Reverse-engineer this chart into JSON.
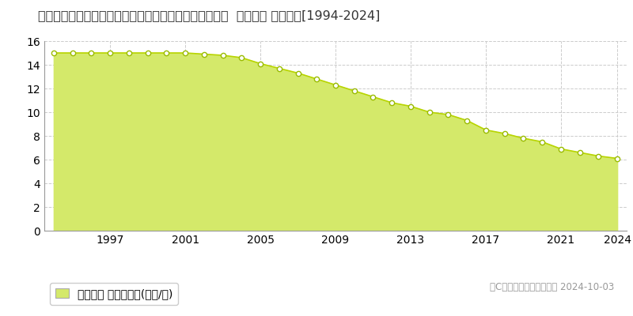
{
  "title": "和歌山県日高郡由良町大字阿戸字木場坪１００１番１８  公示地価 地価推移[1994-2024]",
  "years": [
    1994,
    1995,
    1996,
    1997,
    1998,
    1999,
    2000,
    2001,
    2002,
    2003,
    2004,
    2005,
    2006,
    2007,
    2008,
    2009,
    2010,
    2011,
    2012,
    2013,
    2014,
    2015,
    2016,
    2017,
    2018,
    2019,
    2020,
    2021,
    2022,
    2023,
    2024
  ],
  "values": [
    15.0,
    15.0,
    15.0,
    15.0,
    15.0,
    15.0,
    15.0,
    15.0,
    14.9,
    14.8,
    14.6,
    14.1,
    13.7,
    13.3,
    12.8,
    12.3,
    11.8,
    11.3,
    10.8,
    10.5,
    10.0,
    9.8,
    9.3,
    8.5,
    8.2,
    7.8,
    7.5,
    6.9,
    6.6,
    6.3,
    6.1
  ],
  "fill_color": "#d4e96a",
  "line_color": "#b8d400",
  "marker_color": "#ffffff",
  "marker_edge_color": "#99bb00",
  "bg_color": "#ffffff",
  "grid_color": "#cccccc",
  "ylim": [
    0,
    16
  ],
  "yticks": [
    0,
    2,
    4,
    6,
    8,
    10,
    12,
    14,
    16
  ],
  "xtick_years": [
    1997,
    2001,
    2005,
    2009,
    2013,
    2017,
    2021,
    2024
  ],
  "xlim": [
    1993.5,
    2024.5
  ],
  "legend_label": "公示地価 平均坪単価(万円/坪)",
  "copyright_text": "（C）土地価格ドットコム 2024-10-03",
  "title_fontsize": 11.5,
  "tick_fontsize": 10,
  "legend_fontsize": 10,
  "copyright_fontsize": 8.5
}
